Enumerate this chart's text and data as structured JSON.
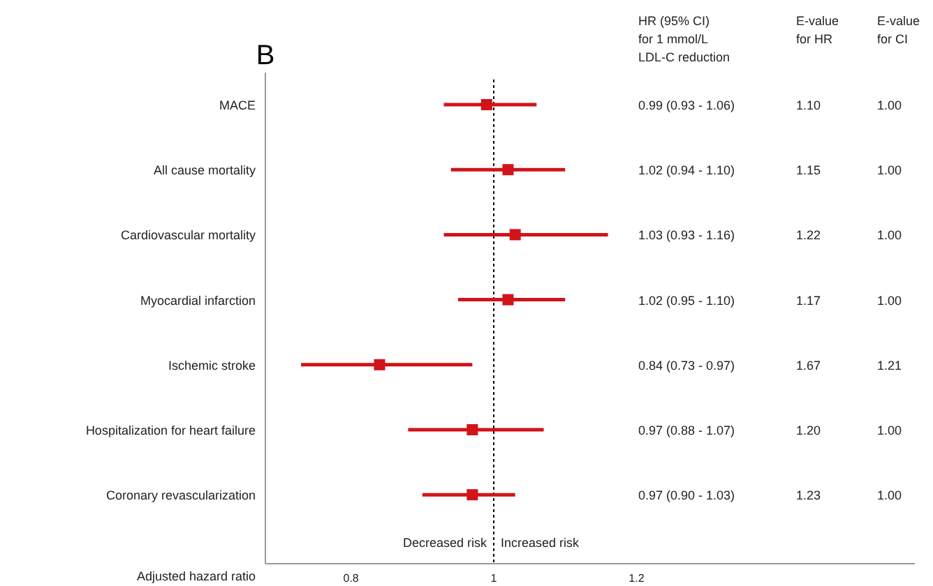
{
  "chart_data": {
    "type": "scatter",
    "orientation": "horizontal",
    "title": "B",
    "xlabel": "Adjusted hazard ratio",
    "categories": [
      "MACE",
      "All cause mortality",
      "Cardiovascular mortality",
      "Myocardial infarction",
      "Ischemic stroke",
      "Hospitalization for heart failure",
      "Coronary revascularization"
    ],
    "values": [
      0.99,
      1.02,
      1.03,
      1.02,
      0.84,
      0.97,
      0.97
    ],
    "errors": [
      [
        0.93,
        1.06
      ],
      [
        0.94,
        1.1
      ],
      [
        0.93,
        1.16
      ],
      [
        0.95,
        1.1
      ],
      [
        0.73,
        0.97
      ],
      [
        0.88,
        1.07
      ],
      [
        0.9,
        1.03
      ]
    ],
    "color": "#d0141a",
    "marker": "square",
    "xlim": [
      0.68,
      1.59
    ],
    "xticks": [
      0.8,
      1,
      1.2
    ],
    "ref_lines": [
      {
        "axis": "x",
        "value": 1,
        "line_style": "dotted",
        "color": "#000000"
      }
    ],
    "annotations": [
      "Decreased risk",
      "Increased risk",
      "HR (95% CI)\nfor 1 mmol/L\nLDL-C reduction",
      "E-value\nfor HR",
      "E-value\nfor CI",
      "0.99 (0.93 - 1.06)",
      "1.10",
      "1.00",
      "1.02 (0.94 - 1.10)",
      "1.15",
      "1.00",
      "1.03 (0.93 - 1.16)",
      "1.22",
      "1.00",
      "1.02 (0.95 - 1.10)",
      "1.17",
      "1.00",
      "0.84 (0.73 - 0.97)",
      "1.67",
      "1.21",
      "0.97 (0.88 - 1.07)",
      "1.20",
      "1.00",
      "0.97 (0.90 - 1.03)",
      "1.23",
      "1.00"
    ]
  }
}
